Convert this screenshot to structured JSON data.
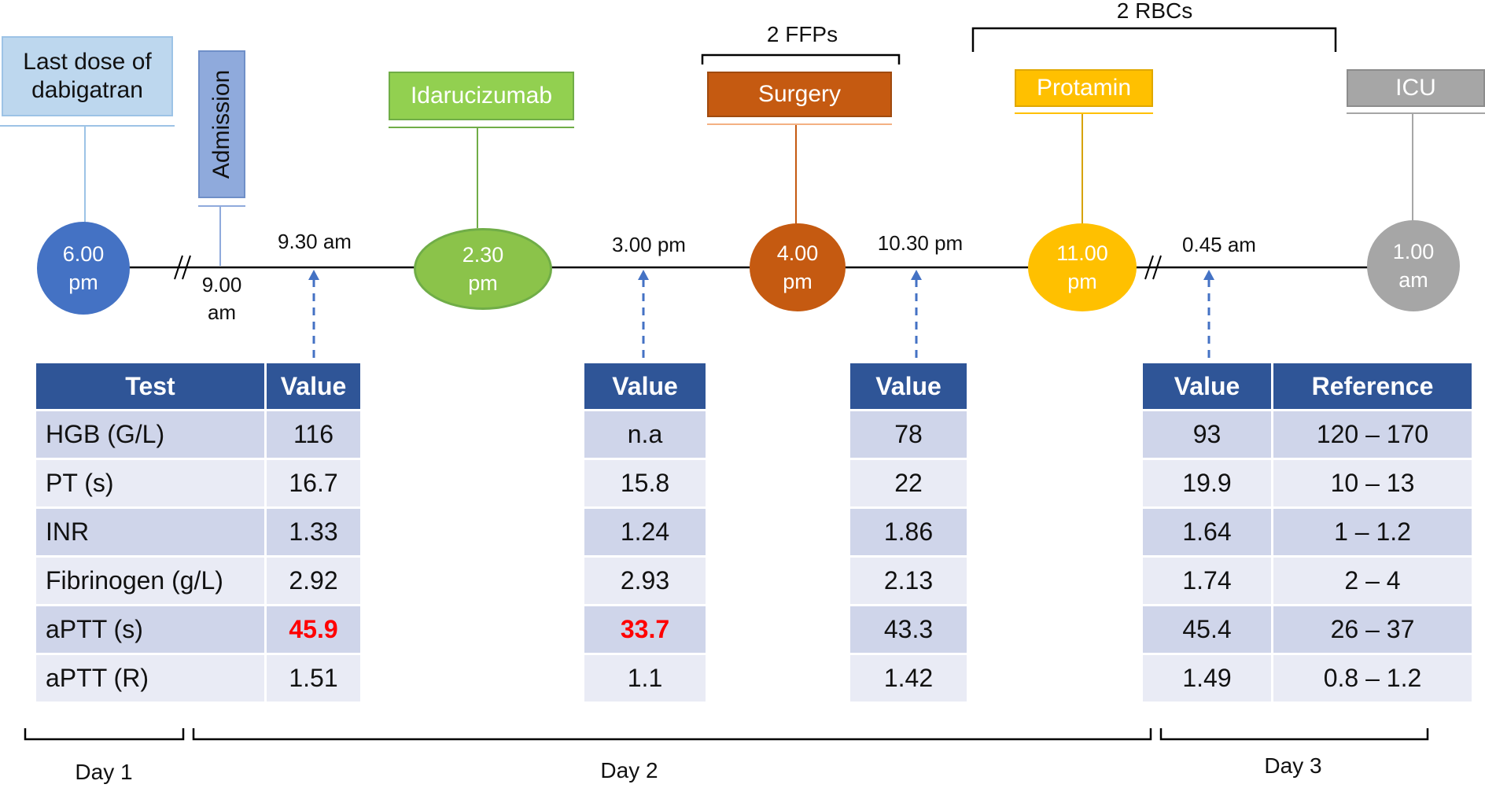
{
  "events": {
    "last_dose": "Last dose of dabigatran",
    "admission": "Admission",
    "idarucizumab": "Idarucizumab",
    "surgery": "Surgery",
    "protamin": "Protamin",
    "icu": "ICU"
  },
  "brackets": {
    "ffps": "2 FFPs",
    "rbcs": "2 RBCs"
  },
  "nodes": {
    "n1": [
      "6.00",
      "pm"
    ],
    "n2": [
      "2.30",
      "pm"
    ],
    "n3": [
      "4.00",
      "pm"
    ],
    "n4": [
      "11.00",
      "pm"
    ],
    "n5": [
      "1.00",
      "am"
    ]
  },
  "times": {
    "admission_time": [
      "9.00",
      "am"
    ],
    "t1": "9.30 am",
    "t2": "3.00 pm",
    "t3": "10.30 pm",
    "t4": "0.45 am"
  },
  "tables": {
    "t1": {
      "headers": [
        "Test",
        "Value"
      ],
      "rows": [
        [
          "HGB (G/L)",
          "116"
        ],
        [
          "PT (s)",
          "16.7"
        ],
        [
          "INR",
          "1.33"
        ],
        [
          "Fibrinogen (g/L)",
          "2.92"
        ],
        [
          "aPTT (s)",
          "45.9"
        ],
        [
          "aPTT (R)",
          "1.51"
        ]
      ]
    },
    "t2": {
      "headers": [
        "Value"
      ],
      "rows": [
        [
          "n.a"
        ],
        [
          "15.8"
        ],
        [
          "1.24"
        ],
        [
          "2.93"
        ],
        [
          "33.7"
        ],
        [
          "1.1"
        ]
      ]
    },
    "t3": {
      "headers": [
        "Value"
      ],
      "rows": [
        [
          "78"
        ],
        [
          "22"
        ],
        [
          "1.86"
        ],
        [
          "2.13"
        ],
        [
          "43.3"
        ],
        [
          "1.42"
        ]
      ]
    },
    "t4": {
      "headers": [
        "Value",
        "Reference"
      ],
      "rows": [
        [
          "93",
          "120 – 170"
        ],
        [
          "19.9",
          "10 – 13"
        ],
        [
          "1.64",
          "1 – 1.2"
        ],
        [
          "1.74",
          "2 – 4"
        ],
        [
          "45.4",
          "26 – 37"
        ],
        [
          "1.49",
          "0.8 – 1.2"
        ]
      ]
    }
  },
  "days": {
    "d1": "Day 1",
    "d2": "Day 2",
    "d3": "Day 3"
  },
  "colors": {
    "blue": "#4472C4",
    "light_blue": "#9DC3E6",
    "green": "#8BC34A",
    "orange": "#C55A11",
    "gold": "#FFC000",
    "gray": "#A6A6A6",
    "header": "#2F5597",
    "highlight": "#FF0000"
  }
}
